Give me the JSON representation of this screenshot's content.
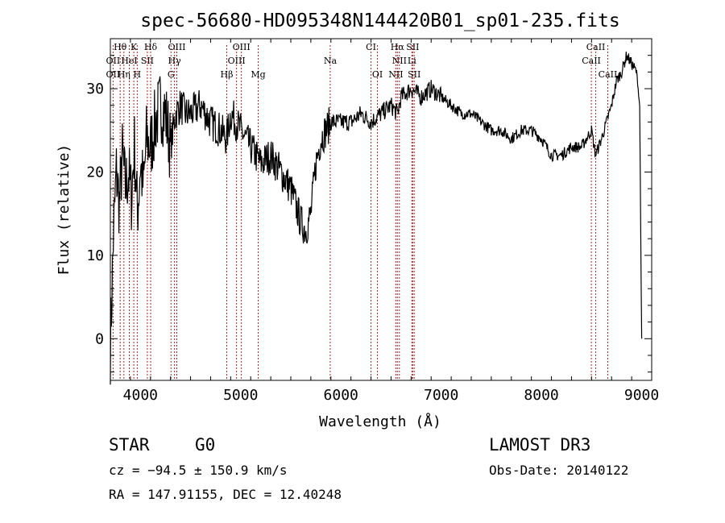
{
  "chart_data": {
    "type": "line",
    "title": "spec-56680-HD095348N144420B01_sp01-235.fits",
    "xlabel": "Wavelength (Å)",
    "ylabel": "Flux (relative)",
    "xlim": [
      3700,
      9100
    ],
    "ylim": [
      -5,
      36
    ],
    "xticks": [
      4000,
      5000,
      6000,
      7000,
      8000,
      9000
    ],
    "yticks": [
      0,
      10,
      20,
      30
    ],
    "grid": false,
    "series": [
      {
        "color": "#000000",
        "x": [
          3700,
          3730,
          3760,
          3790,
          3820,
          3850,
          3880,
          3910,
          3940,
          3970,
          4000,
          4030,
          4060,
          4100,
          4150,
          4200,
          4250,
          4300,
          4350,
          4400,
          4450,
          4500,
          4600,
          4700,
          4800,
          4860,
          4900,
          5000,
          5100,
          5200,
          5300,
          5400,
          5500,
          5550,
          5600,
          5650,
          5700,
          5750,
          5800,
          5900,
          6000,
          6100,
          6200,
          6300,
          6400,
          6500,
          6563,
          6600,
          6700,
          6800,
          6900,
          7000,
          7100,
          7200,
          7300,
          7400,
          7500,
          7600,
          7700,
          7800,
          7900,
          8000,
          8100,
          8200,
          8300,
          8400,
          8500,
          8540,
          8600,
          8650,
          8700,
          8750,
          8800,
          8850,
          8900,
          8950,
          8980,
          9000
        ],
        "y": [
          -1,
          12,
          20,
          16,
          22,
          18,
          20,
          17,
          23,
          15,
          21,
          18,
          24,
          23,
          26,
          28,
          27,
          23,
          27,
          28,
          27,
          27,
          28,
          26,
          25,
          24,
          27,
          25,
          23,
          21,
          22,
          20,
          18,
          16,
          14,
          13,
          15,
          21,
          24,
          26,
          26,
          26,
          27,
          26,
          27,
          28,
          27,
          29,
          30,
          29,
          30,
          29,
          28,
          27,
          27,
          26,
          25,
          25,
          24,
          25,
          25,
          24,
          22,
          22,
          23,
          23,
          25,
          22,
          24,
          26,
          28,
          31,
          32,
          34,
          33,
          32,
          28,
          0
        ]
      }
    ],
    "lines": [
      {
        "label": "Hθ",
        "x": 3798,
        "row": 0
      },
      {
        "label": "K",
        "x": 3934,
        "row": 0
      },
      {
        "label": "Hδ",
        "x": 4102,
        "row": 0
      },
      {
        "label": "OIII",
        "x": 4363,
        "row": 0
      },
      {
        "label": "OIII",
        "x": 5007,
        "row": 0
      },
      {
        "label": "CI",
        "x": 6300,
        "row": 0
      },
      {
        "label": "Hα",
        "x": 6563,
        "row": 0
      },
      {
        "label": "SII",
        "x": 6716,
        "row": 0
      },
      {
        "label": "CaII",
        "x": 8542,
        "row": 0
      },
      {
        "label": "OII",
        "x": 3727,
        "row": 1
      },
      {
        "label": "HeI",
        "x": 3889,
        "row": 1
      },
      {
        "label": "SII",
        "x": 4069,
        "row": 1
      },
      {
        "label": "Hγ",
        "x": 4340,
        "row": 1
      },
      {
        "label": "OIII",
        "x": 4959,
        "row": 1
      },
      {
        "label": "Na",
        "x": 5893,
        "row": 1
      },
      {
        "label": "NII",
        "x": 6583,
        "row": 1
      },
      {
        "label": "Li",
        "x": 6708,
        "row": 1
      },
      {
        "label": "CaII",
        "x": 8498,
        "row": 1
      },
      {
        "label": "OII",
        "x": 3727,
        "row": 2
      },
      {
        "label": "Hη",
        "x": 3835,
        "row": 2
      },
      {
        "label": "H",
        "x": 3968,
        "row": 2
      },
      {
        "label": "G",
        "x": 4305,
        "row": 2
      },
      {
        "label": "Hβ",
        "x": 4861,
        "row": 2
      },
      {
        "label": "Mg",
        "x": 5175,
        "row": 2
      },
      {
        "label": "OI",
        "x": 6364,
        "row": 2
      },
      {
        "label": "NII",
        "x": 6548,
        "row": 2
      },
      {
        "label": "SII",
        "x": 6731,
        "row": 2
      },
      {
        "label": "CaII",
        "x": 8662,
        "row": 2
      }
    ]
  },
  "info": {
    "class_label": "STAR",
    "subclass": "G0",
    "survey": "LAMOST DR3",
    "cz": "cz = −94.5 ± 150.9 km/s",
    "obs_date": "Obs-Date: 20140122",
    "coords": "RA = 147.91155, DEC =  12.40248"
  }
}
